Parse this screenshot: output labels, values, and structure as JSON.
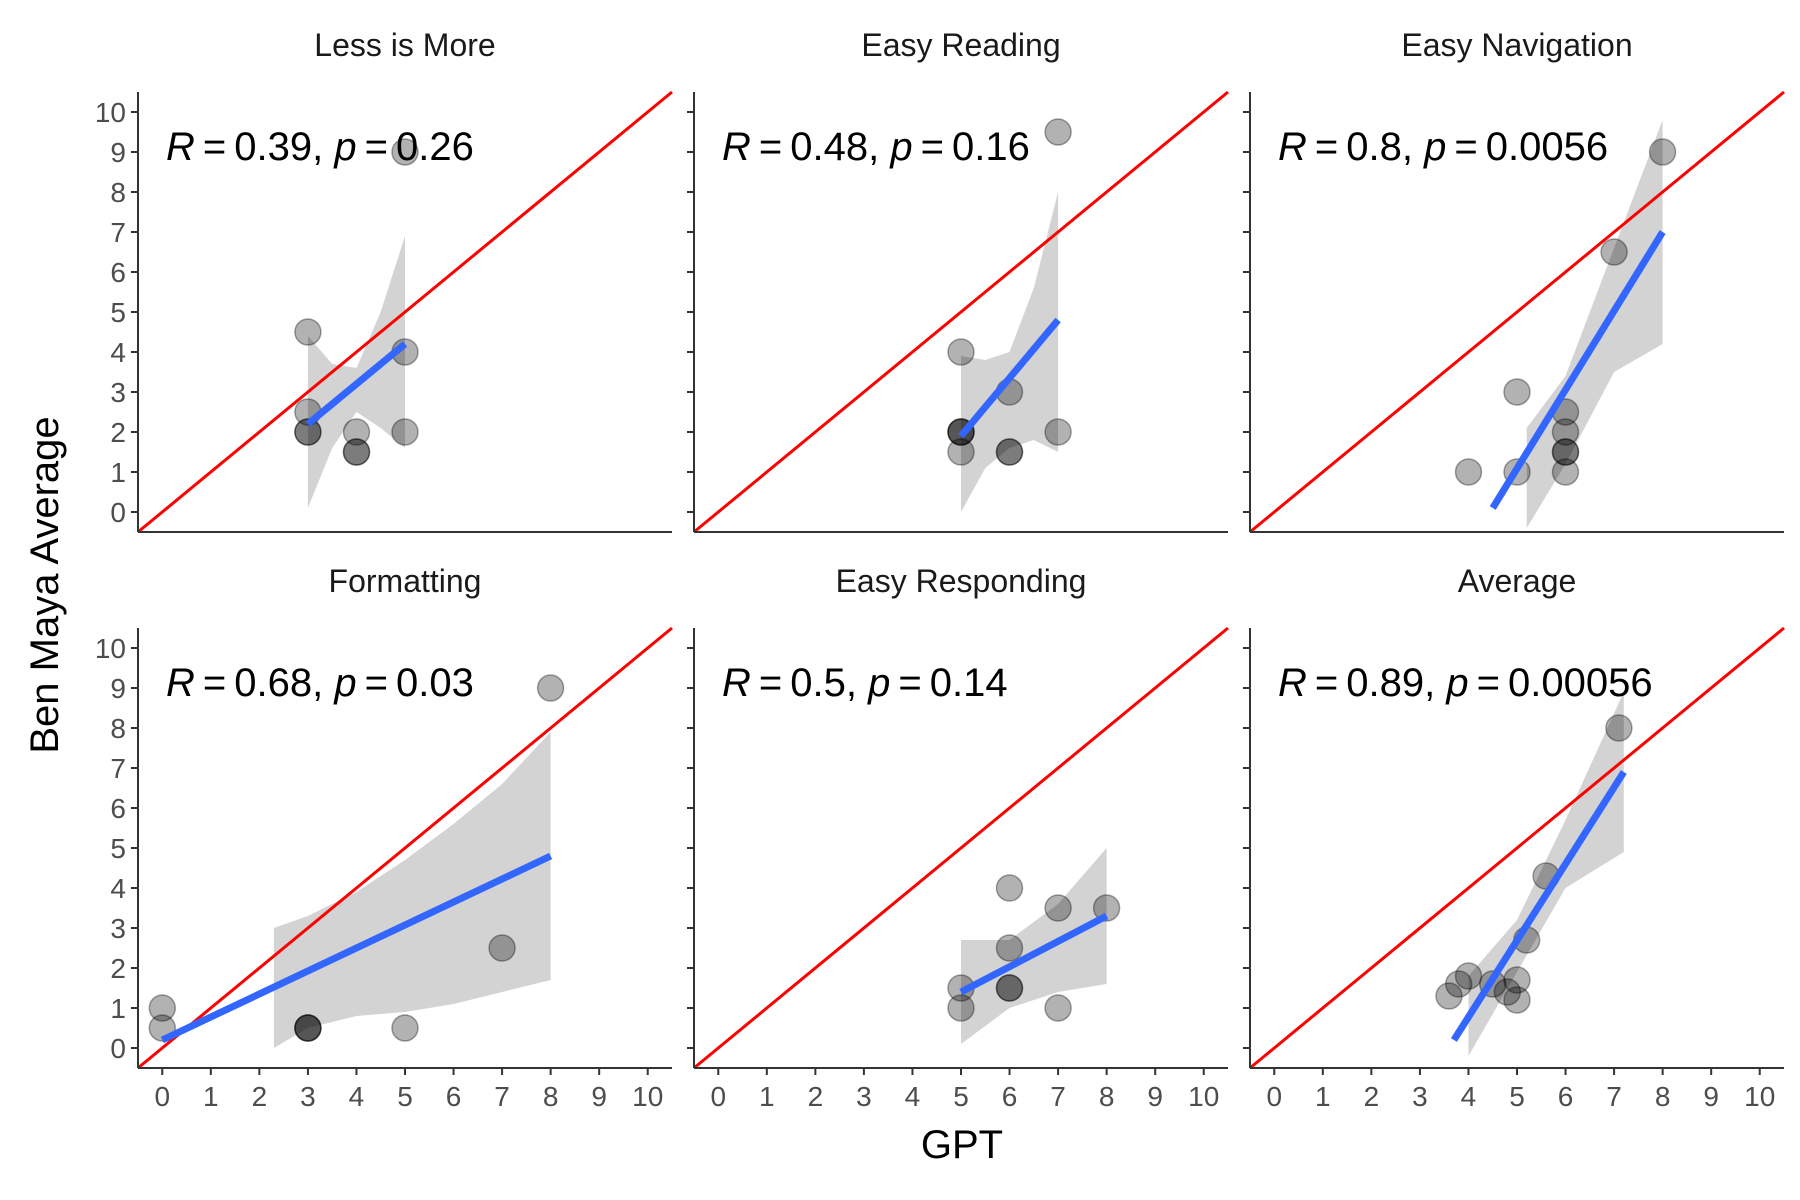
{
  "chart_data": {
    "type": "scatter",
    "xlabel": "GPT",
    "ylabel": "Ben Maya Average",
    "xlim": [
      -0.5,
      10.5
    ],
    "ylim": [
      -0.5,
      10.5
    ],
    "x_ticks": [
      "0",
      "1",
      "2",
      "3",
      "4",
      "5",
      "6",
      "7",
      "8",
      "9",
      "10"
    ],
    "y_ticks": [
      "0",
      "1",
      "2",
      "3",
      "4",
      "5",
      "6",
      "7",
      "8",
      "9",
      "10"
    ],
    "grid": false,
    "reference_line": {
      "slope": 1,
      "intercept": 0,
      "color": "#FF0000"
    },
    "fit_color": "#3366FF",
    "band_color": "#D3D3D3",
    "point_color": "#000000",
    "point_alpha": 0.3,
    "panels": [
      {
        "title": "Less is More",
        "stat": {
          "r": "0.39",
          "p": "0.26"
        },
        "points": [
          [
            3,
            4.5
          ],
          [
            3,
            2.5
          ],
          [
            3,
            2
          ],
          [
            3,
            2
          ],
          [
            4,
            2
          ],
          [
            4,
            1.5
          ],
          [
            4,
            1.5
          ],
          [
            5,
            9
          ],
          [
            5,
            4
          ],
          [
            5,
            2
          ]
        ],
        "fit": {
          "x": [
            3,
            5
          ],
          "y": [
            2.2,
            4.2
          ]
        },
        "band": {
          "x": [
            3,
            3.5,
            4,
            4.5,
            5
          ],
          "lower": [
            0.1,
            1.6,
            2.5,
            2.1,
            1.6
          ],
          "upper": [
            4.4,
            3.7,
            3.6,
            5.0,
            6.9
          ]
        }
      },
      {
        "title": "Easy Reading",
        "stat": {
          "r": "0.48",
          "p": "0.16"
        },
        "points": [
          [
            7,
            9.5
          ],
          [
            5,
            4
          ],
          [
            6,
            3
          ],
          [
            5,
            2
          ],
          [
            5,
            2
          ],
          [
            5,
            2
          ],
          [
            7,
            2
          ],
          [
            5,
            1.5
          ],
          [
            6,
            1.5
          ],
          [
            6,
            1.5
          ]
        ],
        "fit": {
          "x": [
            5,
            7
          ],
          "y": [
            1.9,
            4.8
          ]
        },
        "band": {
          "x": [
            5,
            5.5,
            6,
            6.5,
            7
          ],
          "lower": [
            0.0,
            1.1,
            1.6,
            1.8,
            1.5
          ],
          "upper": [
            3.9,
            3.8,
            4.0,
            5.6,
            8.0
          ]
        }
      },
      {
        "title": "Easy Navigation",
        "stat": {
          "r": "0.8",
          "p": "0.0056"
        },
        "points": [
          [
            8,
            9
          ],
          [
            7,
            6.5
          ],
          [
            5,
            3
          ],
          [
            6,
            2.5
          ],
          [
            6,
            2
          ],
          [
            6,
            1.5
          ],
          [
            6,
            1.5
          ],
          [
            4,
            1
          ],
          [
            5,
            1
          ],
          [
            6,
            1
          ]
        ],
        "fit": {
          "x": [
            4.5,
            8
          ],
          "y": [
            0.1,
            7.0
          ]
        },
        "band": {
          "x": [
            5.2,
            6,
            7,
            8
          ],
          "lower": [
            -0.4,
            1.2,
            3.5,
            4.2
          ],
          "upper": [
            2.1,
            3.4,
            6.6,
            9.8
          ]
        }
      },
      {
        "title": "Formatting",
        "stat": {
          "r": "0.68",
          "p": "0.03"
        },
        "points": [
          [
            8,
            9
          ],
          [
            7,
            2.5
          ],
          [
            0,
            1
          ],
          [
            0,
            0.5
          ],
          [
            3,
            0.5
          ],
          [
            3,
            0.5
          ],
          [
            3,
            0.5
          ],
          [
            5,
            0.5
          ]
        ],
        "fit": {
          "x": [
            0,
            8
          ],
          "y": [
            0.2,
            4.8
          ]
        },
        "band": {
          "x": [
            2.3,
            3,
            4,
            5,
            6,
            7,
            8
          ],
          "lower": [
            0.0,
            0.5,
            0.8,
            0.9,
            1.1,
            1.4,
            1.7
          ],
          "upper": [
            3.0,
            3.3,
            3.9,
            4.7,
            5.6,
            6.6,
            7.9
          ]
        }
      },
      {
        "title": "Easy Responding",
        "stat": {
          "r": "0.5",
          "p": "0.14"
        },
        "points": [
          [
            6,
            4
          ],
          [
            7,
            3.5
          ],
          [
            8,
            3.5
          ],
          [
            6,
            2.5
          ],
          [
            5,
            1.5
          ],
          [
            6,
            1.5
          ],
          [
            6,
            1.5
          ],
          [
            5,
            1
          ],
          [
            7,
            1
          ]
        ],
        "fit": {
          "x": [
            5,
            8
          ],
          "y": [
            1.4,
            3.3
          ]
        },
        "band": {
          "x": [
            5,
            6,
            7,
            8
          ],
          "lower": [
            0.1,
            1.0,
            1.4,
            1.6
          ],
          "upper": [
            2.7,
            2.7,
            3.6,
            5.0
          ]
        }
      },
      {
        "title": "Average",
        "stat": {
          "r": "0.89",
          "p": "0.00056"
        },
        "points": [
          [
            7.1,
            8
          ],
          [
            5.6,
            4.3
          ],
          [
            5.2,
            2.7
          ],
          [
            4,
            1.8
          ],
          [
            5,
            1.7
          ],
          [
            3.8,
            1.6
          ],
          [
            4.5,
            1.6
          ],
          [
            4.8,
            1.4
          ],
          [
            3.6,
            1.3
          ],
          [
            5,
            1.2
          ]
        ],
        "fit": {
          "x": [
            3.7,
            7.2
          ],
          "y": [
            0.2,
            6.9
          ]
        },
        "band": {
          "x": [
            4,
            5,
            6,
            7.2
          ],
          "lower": [
            -0.2,
            1.9,
            4.0,
            4.9
          ],
          "upper": [
            1.8,
            3.2,
            5.7,
            8.9
          ]
        }
      }
    ]
  }
}
